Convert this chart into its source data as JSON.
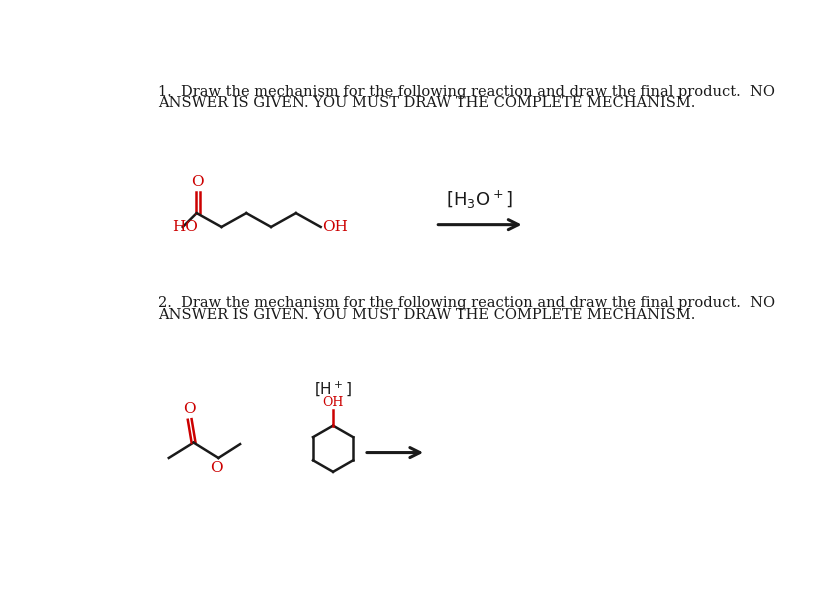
{
  "bg_color": "#ffffff",
  "text_color": "#1a1a1a",
  "red_color": "#cc0000",
  "black_color": "#1a1a1a",
  "line1a": "1.  Draw the mechanism for the following reaction and draw the final product.  NO",
  "line1b": "ANSWER IS GIVEN. YOU MUST DRAW THE COMPLETE MECHANISM.",
  "line2a": "2.  Draw the mechanism for the following reaction and draw the final product.  NO",
  "line2b": "ANSWER IS GIVEN. YOU MUST DRAW THE COMPLETE MECHANISM.",
  "fontsize_text": 10.5
}
